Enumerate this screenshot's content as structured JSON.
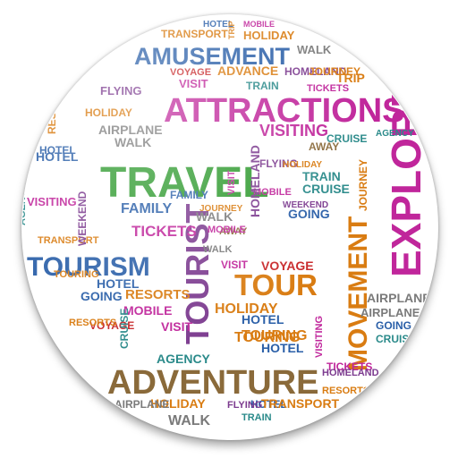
{
  "image": {
    "background": "#ffffff",
    "palette": {
      "blue": "#2a5fa8",
      "green": "#2e9a2e",
      "magenta": "#c0269b",
      "orange": "#d97c12",
      "red": "#c8282a",
      "purple": "#7c3b8f",
      "teal": "#2a8a8a",
      "gray": "#7a7a7a",
      "brown": "#8a6a3a",
      "olive": "#7f9a1f",
      "lightblue": "#3f8fd1",
      "darkgray": "#555555"
    },
    "words": [
      {
        "text": "AMUSEMENT",
        "color": "blue"
      },
      {
        "text": "ATTRACTIONS",
        "color": "magenta"
      },
      {
        "text": "TRAVEL",
        "color": "green"
      },
      {
        "text": "EXPLORE",
        "color": "magenta"
      },
      {
        "text": "TOURISM",
        "color": "blue"
      },
      {
        "text": "TOURIST",
        "color": "purple"
      },
      {
        "text": "TOUR",
        "color": "orange"
      },
      {
        "text": "MOVEMENT",
        "color": "orange"
      },
      {
        "text": "ADVENTURE",
        "color": "brown"
      },
      {
        "text": "HOLIDAY",
        "color": "orange"
      },
      {
        "text": "TRANSPORT",
        "color": "orange"
      },
      {
        "text": "HOTEL",
        "color": "blue"
      },
      {
        "text": "MOBILE",
        "color": "magenta"
      },
      {
        "text": "TRIP",
        "color": "orange"
      },
      {
        "text": "WALK",
        "color": "gray"
      },
      {
        "text": "HOMELAND",
        "color": "purple"
      },
      {
        "text": "JOURNEY",
        "color": "orange"
      },
      {
        "text": "VOYAGE",
        "color": "red"
      },
      {
        "text": "ADVANCE",
        "color": "orange"
      },
      {
        "text": "VISIT",
        "color": "magenta"
      },
      {
        "text": "TRAIN",
        "color": "teal"
      },
      {
        "text": "FLYING",
        "color": "purple"
      },
      {
        "text": "TICKETS",
        "color": "magenta"
      },
      {
        "text": "AIRPLANE",
        "color": "gray"
      },
      {
        "text": "RESORTS",
        "color": "orange"
      },
      {
        "text": "VISITING",
        "color": "magenta"
      },
      {
        "text": "FAMILY",
        "color": "blue"
      },
      {
        "text": "AGENCY",
        "color": "teal"
      },
      {
        "text": "CRUISE",
        "color": "teal"
      },
      {
        "text": "GOING",
        "color": "blue"
      },
      {
        "text": "WEEKEND",
        "color": "purple"
      },
      {
        "text": "TOURING",
        "color": "orange"
      },
      {
        "text": "AWAY",
        "color": "brown"
      }
    ]
  }
}
